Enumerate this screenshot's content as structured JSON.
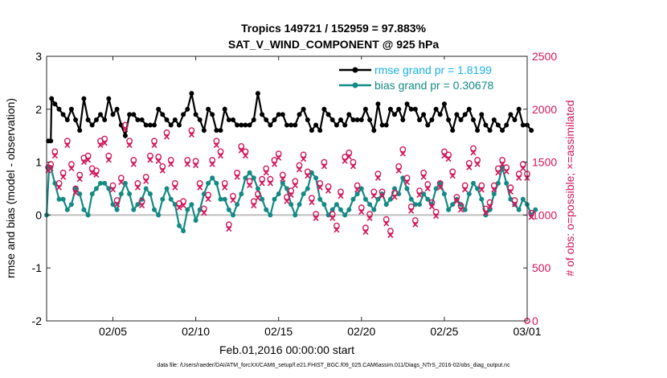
{
  "chart_data": {
    "type": "line",
    "title": "Tropics 149721 / 152959 = 97.883%",
    "subtitle": "SAT_V_WIND_COMPONENT @ 925 hPa",
    "xlabel": "Feb.01,2016 00:00:00 start",
    "ylabel": "rmse and bias (model - observation)",
    "y2label": "# of obs: o=possible; ×=assimilated",
    "footnote": "data file: /Users/raeder/DAI/ATM_forcXX/CAM6_setup/f.e21.FHIST_BGC.f09_025.CAM6assim.011/Diags_NTrS_2016-02/obs_diag_output.nc",
    "x_range": [
      "2016-02-01",
      "2016-03-01"
    ],
    "ylim": [
      -2,
      3
    ],
    "y2lim": [
      0,
      2500
    ],
    "x_ticks": [
      "02/05",
      "02/10",
      "02/15",
      "02/20",
      "02/25",
      "03/01"
    ],
    "x_tick_days": [
      4,
      9,
      14,
      19,
      24,
      29
    ],
    "y_ticks": [
      "-2",
      "-1",
      "0",
      "1",
      "2",
      "3"
    ],
    "y2_ticks": [
      "0",
      "500",
      "1000",
      "1500",
      "2000",
      "2500"
    ],
    "grid": false,
    "legend_position": "top-right",
    "zero_line": true,
    "series": [
      {
        "name": "rmse grand pr = 1.8199",
        "color": "#000000",
        "marker": "circle",
        "x_start_day": 0.25,
        "x_step_day": 0.25,
        "values": [
          1.4,
          2.1,
          2.0,
          1.9,
          1.8,
          2.0,
          1.8,
          1.6,
          2.2,
          1.8,
          1.7,
          1.8,
          1.9,
          1.8,
          2.2,
          1.9,
          2.0,
          1.7,
          1.5,
          1.9,
          1.9,
          1.8,
          1.8,
          1.7,
          1.7,
          1.7,
          2.0,
          1.9,
          1.8,
          1.7,
          1.8,
          1.7,
          1.9,
          2.0,
          2.3,
          1.9,
          1.8,
          1.6,
          2.0,
          1.9,
          1.6,
          1.6,
          2.0,
          1.8,
          1.8,
          1.7,
          1.7,
          1.7,
          1.7,
          1.8,
          2.3,
          1.9,
          1.8,
          1.7,
          1.8,
          1.9,
          1.9,
          1.7,
          1.7,
          1.7,
          1.9,
          2.0,
          1.8,
          1.6,
          1.7,
          1.6,
          2.0,
          1.9,
          1.8,
          1.7,
          1.8,
          1.7,
          1.9,
          1.8,
          1.8,
          1.8,
          2.0,
          1.8,
          1.6,
          2.1,
          1.7,
          1.7,
          2.0,
          1.9,
          2.0,
          1.8,
          2.1,
          2.0,
          2.0,
          1.8,
          1.9,
          1.7,
          1.8,
          2.0,
          1.9,
          2.1,
          1.8,
          1.6,
          1.9,
          1.8,
          1.9,
          2.0,
          1.8,
          1.6,
          1.9,
          1.7,
          1.6,
          1.8,
          1.7,
          1.6,
          1.7,
          1.9,
          1.8,
          2.0,
          1.7,
          1.7,
          1.6
        ],
        "points": [
          [
            0.1,
            1.4
          ],
          [
            0.3,
            2.2
          ]
        ]
      },
      {
        "name": "bias grand pr = 0.30678",
        "color": "#138a84",
        "marker": "circle",
        "x_start_day": 0.25,
        "x_step_day": 0.25,
        "values": [
          0.9,
          0.6,
          0.3,
          0.3,
          0.1,
          0.2,
          0.5,
          0.4,
          0.1,
          0.0,
          0.4,
          0.5,
          0.6,
          0.6,
          0.5,
          0.2,
          0.1,
          0.4,
          0.6,
          0.4,
          0.1,
          0.2,
          0.3,
          0.5,
          0.4,
          0.1,
          0.0,
          0.3,
          0.5,
          0.3,
          0.2,
          -0.2,
          -0.3,
          0.1,
          0.2,
          -0.1,
          0.1,
          0.4,
          0.6,
          0.7,
          0.6,
          0.3,
          0.3,
          0.1,
          0.0,
          0.2,
          0.4,
          0.7,
          0.8,
          0.7,
          0.5,
          0.3,
          0.1,
          0.0,
          0.3,
          0.4,
          0.6,
          0.5,
          0.2,
          0.0,
          0.2,
          0.4,
          0.5,
          0.8,
          0.7,
          0.3,
          0.2,
          0.0,
          0.1,
          0.2,
          0.1,
          0.0,
          0.1,
          0.3,
          0.4,
          0.5,
          0.3,
          0.2,
          0.1,
          0.3,
          0.4,
          0.2,
          0.3,
          0.5,
          0.4,
          0.7,
          0.5,
          0.3,
          0.2,
          0.2,
          0.4,
          0.3,
          0.2,
          0.5,
          0.6,
          0.4,
          0.1,
          0.2,
          0.3,
          0.2,
          0.1,
          0.4,
          0.6,
          0.5,
          0.3,
          0.0,
          0.1,
          0.4,
          0.6,
          0.9,
          0.6,
          0.3,
          0.2,
          0.1,
          0.3,
          0.2,
          0.0,
          0.1
        ],
        "points": [
          [
            0.0,
            0.0
          ],
          [
            0.15,
            0.9
          ]
        ]
      },
      {
        "name": "possible",
        "color": "#d0175a",
        "marker": "o",
        "axis": "right",
        "x_start_day": 0.25,
        "x_step_day": 0.25,
        "values": [
          1480,
          1600,
          1300,
          1400,
          1700,
          1480,
          1250,
          1380,
          1540,
          1560,
          1440,
          1420,
          1700,
          1720,
          1560,
          1280,
          1140,
          1350,
          1850,
          1700,
          1520,
          1300,
          1130,
          1360,
          1560,
          1700,
          1550,
          1460,
          1780,
          1520,
          1300,
          1110,
          1130,
          1520,
          1800,
          1510,
          1300,
          1060,
          1190,
          1520,
          1700,
          1600,
          1300,
          910,
          1180,
          1400,
          1650,
          1600,
          1320,
          1130,
          1200,
          1340,
          1440,
          1340,
          1520,
          1580,
          1380,
          1170,
          1230,
          1320,
          1470,
          1570,
          1410,
          1160,
          1010,
          1300,
          1500,
          1270,
          1010,
          900,
          1220,
          1550,
          1590,
          1500,
          1280,
          1070,
          880,
          1010,
          1220,
          1390,
          1220,
          960,
          850,
          1210,
          1460,
          1620,
          1350,
          1080,
          950,
          1230,
          1400,
          1290,
          1120,
          1030,
          1300,
          1600,
          1570,
          1410,
          1170,
          1090,
          1280,
          1490,
          1630,
          1520,
          1280,
          1060,
          1120,
          1280,
          1440,
          1520,
          1450,
          1260,
          1140,
          1390,
          1480,
          1390,
          1020
        ],
        "points": [
          [
            0.1,
            1450
          ],
          [
            29.0,
            0
          ]
        ]
      },
      {
        "name": "assimilated",
        "color": "#d0175a",
        "marker": "x",
        "axis": "right",
        "x_start_day": 0.25,
        "x_step_day": 0.25,
        "values": [
          1440,
          1560,
          1260,
          1360,
          1660,
          1440,
          1210,
          1340,
          1500,
          1520,
          1400,
          1380,
          1660,
          1680,
          1520,
          1240,
          1100,
          1310,
          1810,
          1660,
          1480,
          1260,
          1090,
          1320,
          1520,
          1660,
          1510,
          1420,
          1740,
          1480,
          1260,
          1070,
          1090,
          1480,
          1760,
          1470,
          1260,
          1020,
          1150,
          1480,
          1660,
          1560,
          1260,
          870,
          1140,
          1360,
          1610,
          1560,
          1280,
          1090,
          1160,
          1300,
          1400,
          1300,
          1480,
          1540,
          1340,
          1130,
          1190,
          1280,
          1430,
          1530,
          1370,
          1120,
          970,
          1260,
          1460,
          1230,
          970,
          860,
          1180,
          1510,
          1550,
          1460,
          1240,
          1030,
          840,
          970,
          1180,
          1350,
          1180,
          920,
          810,
          1170,
          1420,
          1580,
          1310,
          1040,
          910,
          1190,
          1360,
          1250,
          1080,
          990,
          1260,
          1560,
          1530,
          1370,
          1130,
          1050,
          1240,
          1450,
          1590,
          1480,
          1240,
          1020,
          1080,
          1240,
          1400,
          1480,
          1410,
          1220,
          1100,
          1350,
          1440,
          1350,
          980
        ],
        "points": [
          [
            0.1,
            1420
          ]
        ]
      }
    ]
  }
}
